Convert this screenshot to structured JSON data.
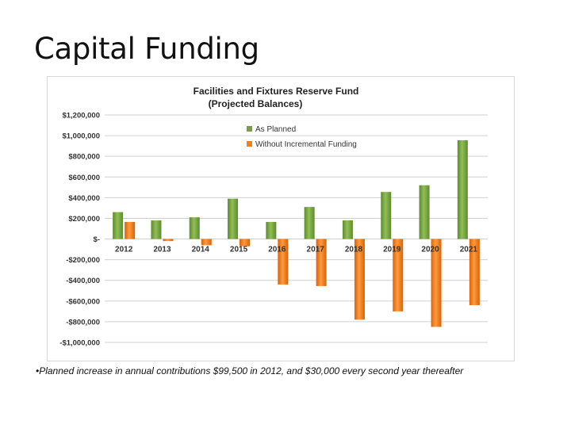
{
  "slide": {
    "title": "Capital Funding",
    "footnote": "•Planned increase in annual contributions $99,500 in 2012, and $30,000 every second year thereafter"
  },
  "colors": {
    "as_planned": "#77a040",
    "without_incremental": "#f47e17",
    "grid": "#d0d0d0"
  },
  "chart_data": {
    "type": "bar",
    "title": "Facilities and Fixtures Reserve Fund",
    "subtitle": "(Projected Balances)",
    "categories": [
      "2012",
      "2013",
      "2014",
      "2015",
      "2016",
      "2017",
      "2018",
      "2019",
      "2020",
      "2021"
    ],
    "series": [
      {
        "name": "As Planned",
        "values": [
          260000,
          180000,
          210000,
          390000,
          165000,
          310000,
          180000,
          455000,
          520000,
          955000
        ]
      },
      {
        "name": "Without Incremental Funding",
        "values": [
          165000,
          -20000,
          -60000,
          -70000,
          -440000,
          -455000,
          -780000,
          -700000,
          -850000,
          -640000
        ]
      }
    ],
    "ylim": [
      -1000000,
      1200000
    ],
    "yticks": [
      1200000,
      1000000,
      800000,
      600000,
      400000,
      200000,
      0,
      -200000,
      -400000,
      -600000,
      -800000,
      -1000000
    ],
    "ytick_labels": [
      "$1,200,000",
      "$1,000,000",
      "$800,000",
      "$600,000",
      "$400,000",
      "$200,000",
      "$-",
      "-$200,000",
      "-$400,000",
      "-$600,000",
      "-$800,000",
      "-$1,000,000"
    ],
    "grid": true,
    "legend_position": "top-center"
  }
}
